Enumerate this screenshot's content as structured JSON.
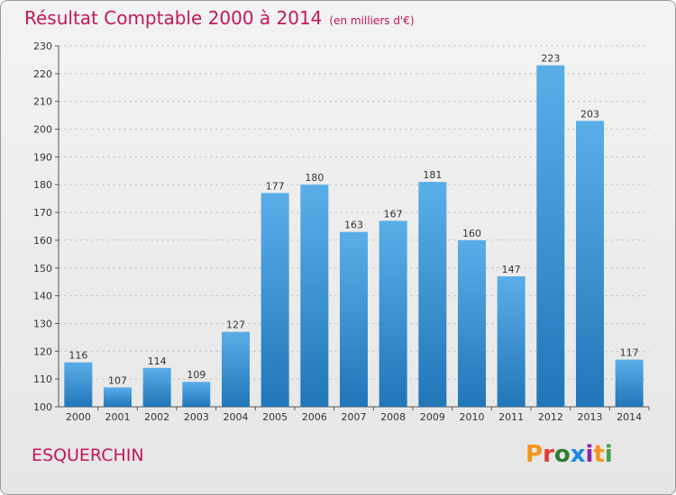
{
  "header": {
    "title": "Résultat Comptable 2000 à 2014",
    "subtitle": "(en milliers d'€)"
  },
  "footer": {
    "location": "ESQUERCHIN",
    "logo_text": "Proxiti",
    "logo_colors": [
      "#f7941d",
      "#e53935",
      "#2e7d32",
      "#1e88e5",
      "#8e24aa",
      "#f7941d",
      "#43a047"
    ]
  },
  "colors": {
    "bar_top": "#5aaee8",
    "bar_bottom": "#2176b8",
    "text_accent": "#c2185b"
  },
  "chart_data": {
    "type": "bar",
    "title": "Résultat Comptable 2000 à 2014",
    "subtitle": "(en milliers d'€)",
    "xlabel": "",
    "ylabel": "",
    "categories": [
      "2000",
      "2001",
      "2002",
      "2003",
      "2004",
      "2005",
      "2006",
      "2007",
      "2008",
      "2009",
      "2010",
      "2011",
      "2012",
      "2013",
      "2014"
    ],
    "values": [
      116,
      107,
      114,
      109,
      127,
      177,
      180,
      163,
      167,
      181,
      160,
      147,
      223,
      203,
      117
    ],
    "ylim": [
      100,
      230
    ],
    "yticks": [
      100,
      110,
      120,
      130,
      140,
      150,
      160,
      170,
      180,
      190,
      200,
      210,
      220,
      230
    ],
    "grid": true,
    "legend": "none"
  }
}
